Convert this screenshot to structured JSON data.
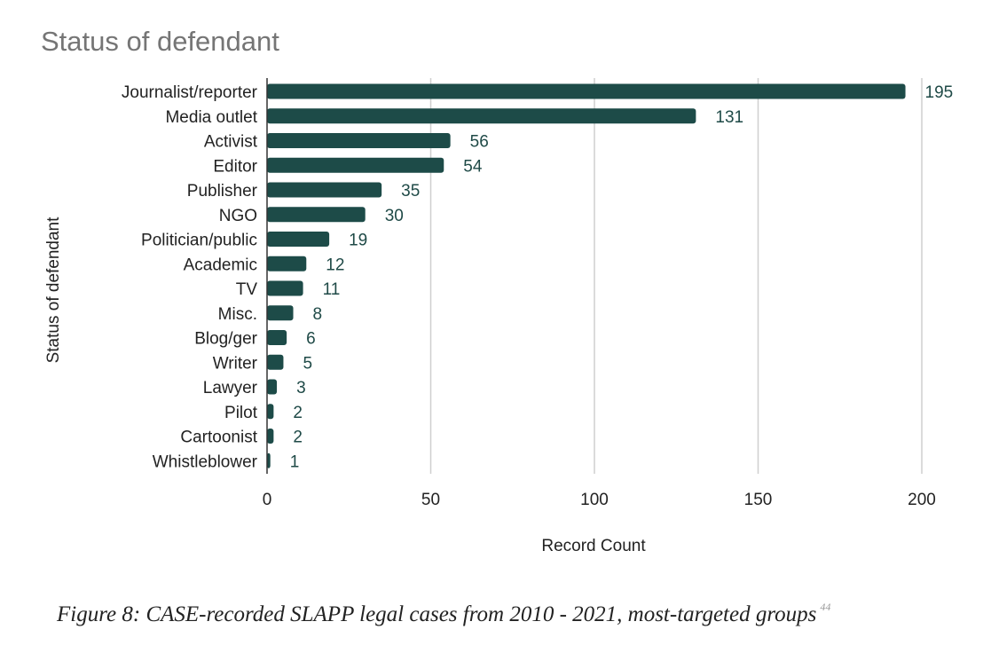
{
  "chart_data": {
    "type": "bar",
    "orientation": "horizontal",
    "title": "Status of defendant",
    "xlabel": "Record Count",
    "ylabel": "Status of defendant",
    "xlim": [
      0,
      200
    ],
    "xticks": [
      0,
      50,
      100,
      150,
      200
    ],
    "grid": "vertical",
    "bar_color": "#1d4b48",
    "categories": [
      "Journalist/reporter",
      "Media outlet",
      "Activist",
      "Editor",
      "Publisher",
      "NGO",
      "Politician/public",
      "Academic",
      "TV",
      "Misc.",
      "Blog/ger",
      "Writer",
      "Lawyer",
      "Pilot",
      "Cartoonist",
      "Whistleblower"
    ],
    "values": [
      195,
      131,
      56,
      54,
      35,
      30,
      19,
      12,
      11,
      8,
      6,
      5,
      3,
      2,
      2,
      1
    ]
  },
  "caption": {
    "text": "Figure 8: CASE-recorded SLAPP legal cases from 2010 - 2021, most-targeted groups",
    "footnote": "44"
  }
}
